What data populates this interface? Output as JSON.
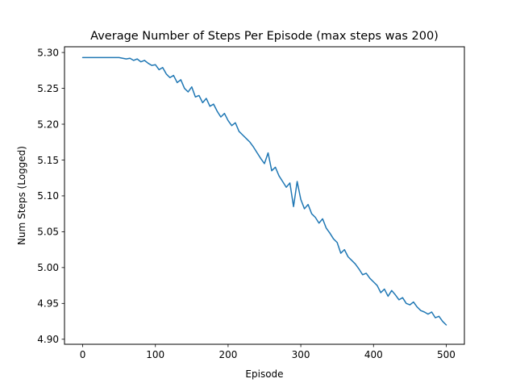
{
  "chart_data": {
    "type": "line",
    "title": "Average Number of Steps Per Episode (max steps was 200)",
    "xlabel": "Episode",
    "ylabel": "Num Steps (Logged)",
    "xlim": [
      -25,
      525
    ],
    "ylim": [
      4.893,
      5.308
    ],
    "xticks": [
      0,
      100,
      200,
      300,
      400,
      500
    ],
    "yticks": [
      4.9,
      4.95,
      5.0,
      5.05,
      5.1,
      5.15,
      5.2,
      5.25,
      5.3
    ],
    "xtick_labels": [
      "0",
      "100",
      "200",
      "300",
      "400",
      "500"
    ],
    "ytick_labels": [
      "4.90",
      "4.95",
      "5.00",
      "5.05",
      "5.10",
      "5.15",
      "5.20",
      "5.25",
      "5.30"
    ],
    "grid": false,
    "series": [
      {
        "color": "#1f77b4",
        "x": [
          0,
          10,
          20,
          30,
          40,
          50,
          55,
          60,
          65,
          70,
          75,
          80,
          85,
          90,
          95,
          100,
          105,
          110,
          115,
          120,
          125,
          130,
          135,
          140,
          145,
          150,
          155,
          160,
          165,
          170,
          175,
          180,
          185,
          190,
          195,
          200,
          205,
          210,
          215,
          220,
          225,
          230,
          235,
          240,
          245,
          250,
          255,
          260,
          265,
          270,
          275,
          280,
          285,
          290,
          295,
          300,
          305,
          310,
          315,
          320,
          325,
          330,
          335,
          340,
          345,
          350,
          355,
          360,
          365,
          370,
          375,
          380,
          385,
          390,
          395,
          400,
          405,
          410,
          415,
          420,
          425,
          430,
          435,
          440,
          445,
          450,
          455,
          460,
          465,
          470,
          475,
          480,
          485,
          490,
          495,
          500
        ],
        "y": [
          5.293,
          5.293,
          5.293,
          5.293,
          5.293,
          5.293,
          5.292,
          5.291,
          5.292,
          5.289,
          5.291,
          5.287,
          5.289,
          5.285,
          5.282,
          5.283,
          5.276,
          5.279,
          5.27,
          5.265,
          5.268,
          5.258,
          5.262,
          5.25,
          5.245,
          5.252,
          5.238,
          5.24,
          5.23,
          5.236,
          5.225,
          5.228,
          5.218,
          5.21,
          5.215,
          5.205,
          5.198,
          5.202,
          5.19,
          5.185,
          5.18,
          5.175,
          5.168,
          5.16,
          5.152,
          5.145,
          5.16,
          5.135,
          5.14,
          5.128,
          5.12,
          5.112,
          5.118,
          5.085,
          5.12,
          5.095,
          5.082,
          5.088,
          5.075,
          5.07,
          5.062,
          5.068,
          5.055,
          5.048,
          5.04,
          5.035,
          5.02,
          5.025,
          5.015,
          5.01,
          5.005,
          4.998,
          4.99,
          4.992,
          4.985,
          4.98,
          4.975,
          4.965,
          4.97,
          4.96,
          4.968,
          4.962,
          4.955,
          4.958,
          4.95,
          4.948,
          4.952,
          4.945,
          4.94,
          4.938,
          4.935,
          4.938,
          4.93,
          4.932,
          4.925,
          4.92
        ]
      }
    ]
  }
}
